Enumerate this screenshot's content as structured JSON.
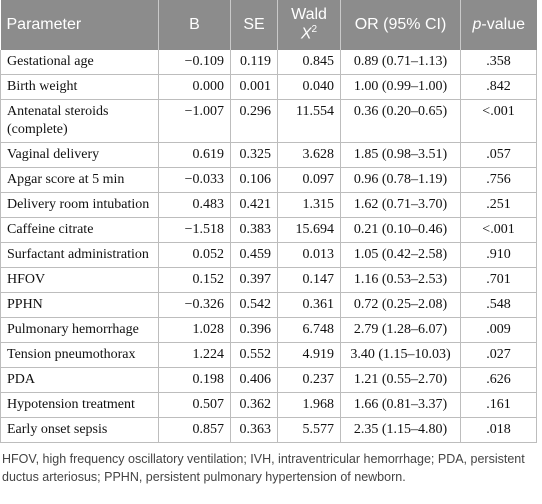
{
  "table": {
    "header": [
      {
        "text": "Parameter"
      },
      {
        "text": "B"
      },
      {
        "text": "SE"
      },
      {
        "text": "Wald",
        "symbol": "X",
        "sup": "2"
      },
      {
        "text": "OR (95% CI)"
      },
      {
        "italic": "p",
        "text": "-value"
      }
    ],
    "rows": [
      [
        "Gestational age",
        "−0.109",
        "0.119",
        "0.845",
        "0.89 (0.71–1.13)",
        ".358"
      ],
      [
        "Birth weight",
        "0.000",
        "0.001",
        "0.040",
        "1.00 (0.99–1.00)",
        ".842"
      ],
      [
        "Antenatal steroids (complete)",
        "−1.007",
        "0.296",
        "11.554",
        "0.36 (0.20–0.65)",
        "<.001"
      ],
      [
        "Vaginal delivery",
        "0.619",
        "0.325",
        "3.628",
        "1.85 (0.98–3.51)",
        ".057"
      ],
      [
        "Apgar score at 5 min",
        "−0.033",
        "0.106",
        "0.097",
        "0.96 (0.78–1.19)",
        ".756"
      ],
      [
        "Delivery room intubation",
        "0.483",
        "0.421",
        "1.315",
        "1.62 (0.71–3.70)",
        ".251"
      ],
      [
        "Caffeine citrate",
        "−1.518",
        "0.383",
        "15.694",
        "0.21 (0.10–0.46)",
        "<.001"
      ],
      [
        "Surfactant administration",
        "0.052",
        "0.459",
        "0.013",
        "1.05 (0.42–2.58)",
        ".910"
      ],
      [
        "HFOV",
        "0.152",
        "0.397",
        "0.147",
        "1.16 (0.53–2.53)",
        ".701"
      ],
      [
        "PPHN",
        "−0.326",
        "0.542",
        "0.361",
        "0.72 (0.25–2.08)",
        ".548"
      ],
      [
        "Pulmonary hemorrhage",
        "1.028",
        "0.396",
        "6.748",
        "2.79 (1.28–6.07)",
        ".009"
      ],
      [
        "Tension pneumothorax",
        "1.224",
        "0.552",
        "4.919",
        "3.40 (1.15–10.03)",
        ".027"
      ],
      [
        "PDA",
        "0.198",
        "0.406",
        "0.237",
        "1.21 (0.55–2.70)",
        ".626"
      ],
      [
        "Hypotension treatment",
        "0.507",
        "0.362",
        "1.968",
        "1.66 (0.81–3.37)",
        ".161"
      ],
      [
        "Early onset sepsis",
        "0.857",
        "0.363",
        "5.577",
        "2.35 (1.15–4.80)",
        ".018"
      ]
    ],
    "footnote": "HFOV, high frequency oscillatory ventilation; IVH, intraventricular hemorrhage; PDA, persistent ductus arteriosus; PPHN, persistent pulmonary hypertension of newborn."
  }
}
